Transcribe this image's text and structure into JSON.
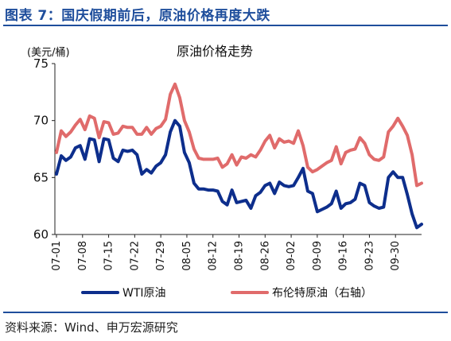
{
  "figure_title": "图表 7：国庆假期前后，原油价格再度大跌",
  "source_note": "资料来源：Wind、申万宏源研究",
  "chart_data": {
    "type": "line",
    "title": "原油价格走势",
    "unit_label": "(美元/桶)",
    "ylim": [
      60,
      75
    ],
    "yticks": [
      60,
      65,
      70,
      75
    ],
    "x_ticks": [
      "07-01",
      "07-08",
      "07-15",
      "07-22",
      "07-29",
      "08-05",
      "08-12",
      "08-19",
      "08-26",
      "09-02",
      "09-09",
      "09-16",
      "09-23",
      "09-30"
    ],
    "grid": false,
    "legend_position": "bottom",
    "series": [
      {
        "name": "WTI原油",
        "color": "#0d2e8c",
        "points": [
          [
            0,
            65.3
          ],
          [
            1,
            66.9
          ],
          [
            2,
            66.5
          ],
          [
            3,
            66.8
          ],
          [
            4,
            67.6
          ],
          [
            5,
            67.8
          ],
          [
            6,
            66.6
          ],
          [
            7,
            68.4
          ],
          [
            8,
            68.3
          ],
          [
            9,
            66.4
          ],
          [
            10,
            68.4
          ],
          [
            11,
            68.3
          ],
          [
            12,
            66.7
          ],
          [
            13,
            66.4
          ],
          [
            14,
            67.4
          ],
          [
            15,
            67.3
          ],
          [
            16,
            67.4
          ],
          [
            17,
            67.0
          ],
          [
            18,
            65.3
          ],
          [
            19,
            65.7
          ],
          [
            20,
            65.4
          ],
          [
            21,
            66.0
          ],
          [
            22,
            66.3
          ],
          [
            23,
            67.0
          ],
          [
            24,
            69.0
          ],
          [
            25,
            70.0
          ],
          [
            26,
            69.5
          ],
          [
            27,
            67.2
          ],
          [
            28,
            66.3
          ],
          [
            29,
            64.5
          ],
          [
            30,
            64.0
          ],
          [
            31,
            64.0
          ],
          [
            32,
            63.9
          ],
          [
            33,
            63.9
          ],
          [
            34,
            63.8
          ],
          [
            35,
            62.9
          ],
          [
            36,
            62.6
          ],
          [
            37,
            63.9
          ],
          [
            38,
            62.8
          ],
          [
            39,
            62.9
          ],
          [
            40,
            63.0
          ],
          [
            41,
            62.3
          ],
          [
            42,
            63.4
          ],
          [
            43,
            63.7
          ],
          [
            44,
            64.3
          ],
          [
            45,
            64.5
          ],
          [
            46,
            63.6
          ],
          [
            47,
            64.6
          ],
          [
            48,
            64.3
          ],
          [
            49,
            64.2
          ],
          [
            50,
            64.3
          ],
          [
            51,
            65.0
          ],
          [
            52,
            65.8
          ],
          [
            53,
            63.8
          ],
          [
            54,
            63.6
          ],
          [
            55,
            62.0
          ],
          [
            56,
            62.2
          ],
          [
            57,
            62.4
          ],
          [
            58,
            62.7
          ],
          [
            59,
            63.8
          ],
          [
            60,
            62.3
          ],
          [
            61,
            62.7
          ],
          [
            62,
            62.8
          ],
          [
            63,
            63.1
          ],
          [
            64,
            64.5
          ],
          [
            65,
            64.3
          ],
          [
            66,
            62.8
          ],
          [
            67,
            62.5
          ],
          [
            68,
            62.3
          ],
          [
            69,
            62.4
          ],
          [
            70,
            65.0
          ],
          [
            71,
            65.5
          ],
          [
            72,
            65.0
          ],
          [
            73,
            65.0
          ],
          [
            74,
            63.5
          ],
          [
            75,
            61.8
          ],
          [
            76,
            60.6
          ],
          [
            77,
            60.9
          ]
        ]
      },
      {
        "name": "布伦特原油（右轴）",
        "color": "#e06b6b",
        "points": [
          [
            0,
            67.2
          ],
          [
            1,
            69.1
          ],
          [
            2,
            68.6
          ],
          [
            3,
            69.0
          ],
          [
            4,
            69.6
          ],
          [
            5,
            70.1
          ],
          [
            6,
            69.2
          ],
          [
            7,
            70.4
          ],
          [
            8,
            70.2
          ],
          [
            9,
            68.5
          ],
          [
            10,
            69.9
          ],
          [
            11,
            69.8
          ],
          [
            12,
            68.8
          ],
          [
            13,
            68.9
          ],
          [
            14,
            69.5
          ],
          [
            15,
            69.4
          ],
          [
            16,
            69.4
          ],
          [
            17,
            68.8
          ],
          [
            18,
            68.8
          ],
          [
            19,
            69.4
          ],
          [
            20,
            68.8
          ],
          [
            21,
            69.3
          ],
          [
            22,
            69.5
          ],
          [
            23,
            70.1
          ],
          [
            24,
            72.3
          ],
          [
            25,
            73.2
          ],
          [
            26,
            72.0
          ],
          [
            27,
            70.0
          ],
          [
            28,
            69.0
          ],
          [
            29,
            67.5
          ],
          [
            30,
            66.7
          ],
          [
            31,
            66.6
          ],
          [
            32,
            66.6
          ],
          [
            33,
            66.6
          ],
          [
            34,
            66.7
          ],
          [
            35,
            65.9
          ],
          [
            36,
            66.2
          ],
          [
            37,
            67.0
          ],
          [
            38,
            66.1
          ],
          [
            39,
            66.8
          ],
          [
            40,
            66.7
          ],
          [
            41,
            67.0
          ],
          [
            42,
            66.8
          ],
          [
            43,
            67.4
          ],
          [
            44,
            68.2
          ],
          [
            45,
            68.7
          ],
          [
            46,
            67.6
          ],
          [
            47,
            68.4
          ],
          [
            48,
            68.1
          ],
          [
            49,
            68.2
          ],
          [
            50,
            68.0
          ],
          [
            51,
            69.1
          ],
          [
            52,
            67.8
          ],
          [
            53,
            65.9
          ],
          [
            54,
            65.5
          ],
          [
            55,
            65.7
          ],
          [
            56,
            66.0
          ],
          [
            57,
            66.3
          ],
          [
            58,
            66.5
          ],
          [
            59,
            67.7
          ],
          [
            60,
            66.2
          ],
          [
            61,
            67.2
          ],
          [
            62,
            67.4
          ],
          [
            63,
            67.5
          ],
          [
            64,
            68.5
          ],
          [
            65,
            68.0
          ],
          [
            66,
            67.0
          ],
          [
            67,
            66.6
          ],
          [
            68,
            66.5
          ],
          [
            69,
            66.8
          ],
          [
            70,
            69.0
          ],
          [
            71,
            69.5
          ],
          [
            72,
            70.2
          ],
          [
            73,
            69.5
          ],
          [
            74,
            68.7
          ],
          [
            75,
            67.0
          ],
          [
            76,
            64.3
          ],
          [
            77,
            64.5
          ]
        ]
      }
    ]
  }
}
